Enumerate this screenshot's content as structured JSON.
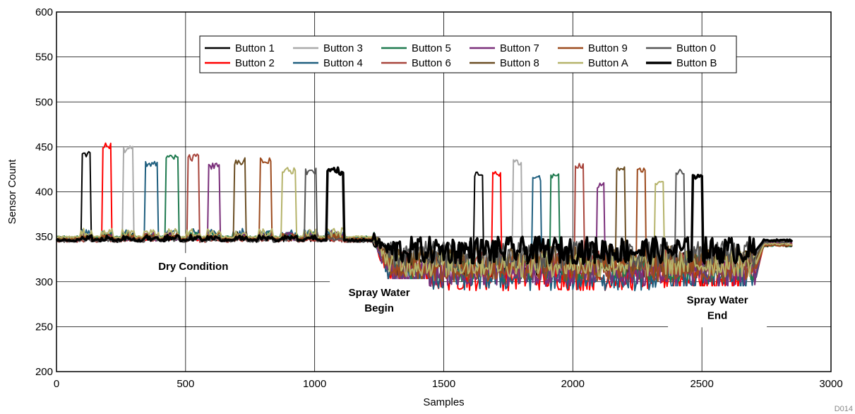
{
  "chart_data": {
    "type": "line",
    "title": "",
    "xlabel": "Samples",
    "ylabel": "Sensor Count",
    "xlim": [
      0,
      3000
    ],
    "ylim": [
      200,
      600
    ],
    "xticks": [
      0,
      500,
      1000,
      1500,
      2000,
      2500,
      3000
    ],
    "yticks": [
      200,
      250,
      300,
      350,
      400,
      450,
      500,
      550,
      600
    ],
    "grid": true,
    "legend_position": "top-center",
    "figure_id": "D014",
    "annotations": [
      {
        "lines": [
          "Dry Condition"
        ],
        "x": 530,
        "y": 313
      },
      {
        "lines": [
          "Spray Water",
          "Begin"
        ],
        "x": 1250,
        "y": 284
      },
      {
        "lines": [
          "Spray Water",
          "End"
        ],
        "x": 2560,
        "y": 276
      }
    ],
    "series": [
      {
        "name": "Button 1",
        "color": "#000000",
        "width": 2,
        "dry_press": [
          100,
          130
        ],
        "dry_peak": 446,
        "wet_press": [
          1620,
          1650
        ],
        "wet_peak": 423,
        "wet_level": 320
      },
      {
        "name": "Button 2",
        "color": "#ff0000",
        "width": 2,
        "dry_press": [
          180,
          210
        ],
        "dry_peak": 455,
        "wet_press": [
          1690,
          1720
        ],
        "wet_peak": 423,
        "wet_level": 305
      },
      {
        "name": "Button 3",
        "color": "#aaaaaa",
        "width": 2,
        "dry_press": [
          260,
          295
        ],
        "dry_peak": 451,
        "wet_press": [
          1770,
          1800
        ],
        "wet_peak": 436,
        "wet_level": 325
      },
      {
        "name": "Button 4",
        "color": "#1f5f7f",
        "width": 2,
        "dry_press": [
          345,
          390
        ],
        "dry_peak": 436,
        "wet_press": [
          1845,
          1875
        ],
        "wet_peak": 418,
        "wet_level": 305
      },
      {
        "name": "Button 5",
        "color": "#1f7a4f",
        "width": 2,
        "dry_press": [
          425,
          470
        ],
        "dry_peak": 443,
        "wet_press": [
          1915,
          1945
        ],
        "wet_peak": 420,
        "wet_level": 315
      },
      {
        "name": "Button 6",
        "color": "#a8453c",
        "width": 2,
        "dry_press": [
          510,
          550
        ],
        "dry_peak": 442,
        "wet_press": [
          2010,
          2040
        ],
        "wet_peak": 432,
        "wet_level": 320
      },
      {
        "name": "Button 7",
        "color": "#7a2f7a",
        "width": 2,
        "dry_press": [
          590,
          630
        ],
        "dry_peak": 432,
        "wet_press": [
          2095,
          2120
        ],
        "wet_peak": 410,
        "wet_level": 310
      },
      {
        "name": "Button 8",
        "color": "#6b4e23",
        "width": 2,
        "dry_press": [
          690,
          730
        ],
        "dry_peak": 438,
        "wet_press": [
          2170,
          2200
        ],
        "wet_peak": 428,
        "wet_level": 325
      },
      {
        "name": "Button 9",
        "color": "#9c4a1d",
        "width": 2,
        "dry_press": [
          790,
          830
        ],
        "dry_peak": 438,
        "wet_press": [
          2250,
          2280
        ],
        "wet_peak": 428,
        "wet_level": 315
      },
      {
        "name": "Button A",
        "color": "#b5b36a",
        "width": 2,
        "dry_press": [
          875,
          925
        ],
        "dry_peak": 427,
        "wet_press": [
          2320,
          2350
        ],
        "wet_peak": 414,
        "wet_level": 320
      },
      {
        "name": "Button 0",
        "color": "#555555",
        "width": 2,
        "dry_press": [
          965,
          1005
        ],
        "dry_peak": 427,
        "wet_press": [
          2400,
          2430
        ],
        "wet_peak": 425,
        "wet_level": 330
      },
      {
        "name": "Button B",
        "color": "#000000",
        "width": 3.5,
        "dry_press": [
          1050,
          1110
        ],
        "dry_peak": 427,
        "wet_press": [
          2465,
          2500
        ],
        "wet_peak": 420,
        "wet_level": 335
      }
    ],
    "legend_order": [
      "Button 1",
      "Button 3",
      "Button 5",
      "Button 7",
      "Button 9",
      "Button 0",
      "Button 2",
      "Button 4",
      "Button 6",
      "Button 8",
      "Button A",
      "Button B"
    ]
  }
}
